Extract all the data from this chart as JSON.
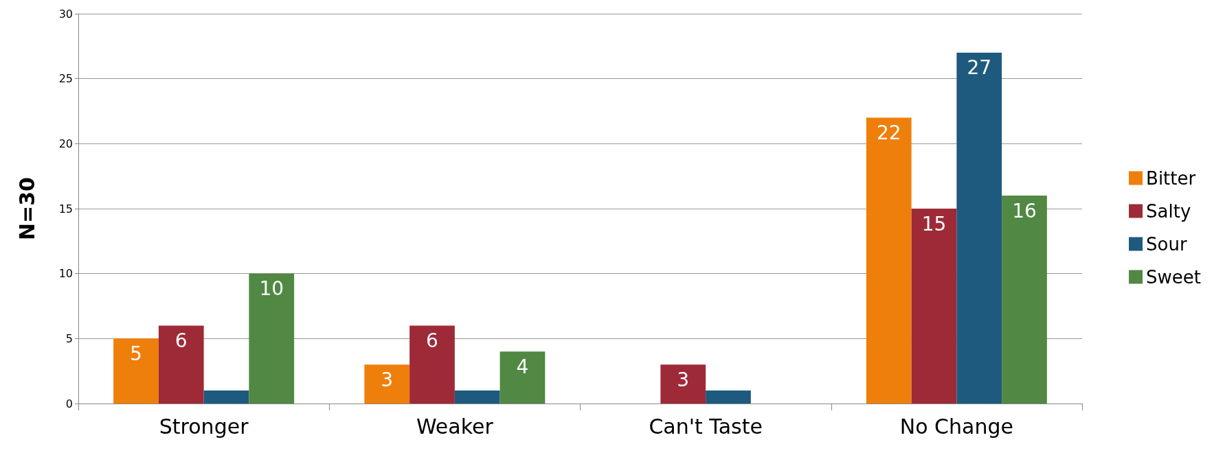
{
  "chart_data": {
    "type": "bar",
    "ylabel": "N=30",
    "categories": [
      "Stronger",
      "Weaker",
      "Can't Taste",
      "No Change"
    ],
    "series": [
      {
        "name": "Bitter",
        "color": "#ef7f0b",
        "values": [
          5,
          3,
          null,
          22
        ],
        "value_labels": [
          "5",
          "3",
          null,
          "22"
        ]
      },
      {
        "name": "Salty",
        "color": "#9e2a38",
        "values": [
          6,
          6,
          3,
          15
        ],
        "value_labels": [
          "6",
          "6",
          "3",
          "15"
        ]
      },
      {
        "name": "Sour",
        "color": "#1e5a7e",
        "values": [
          1,
          1,
          1,
          27
        ],
        "value_labels": [
          null,
          null,
          null,
          "27"
        ]
      },
      {
        "name": "Sweet",
        "color": "#518843",
        "values": [
          10,
          4,
          null,
          16
        ],
        "value_labels": [
          "10",
          "4",
          null,
          "16"
        ]
      }
    ],
    "ylim": [
      0,
      30
    ],
    "yticks": [
      0,
      5,
      10,
      15,
      20,
      25,
      30
    ],
    "grid": "y",
    "legend": "right"
  }
}
